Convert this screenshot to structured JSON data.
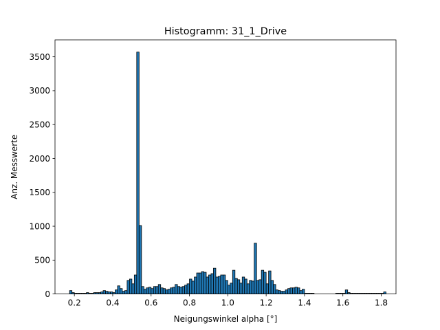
{
  "chart_data": {
    "type": "bar",
    "title": "Histogramm: 31_1_Drive",
    "xlabel": "Neigungswinkel alpha [°]",
    "ylabel": "Anz. Messwerte",
    "xlim": [
      0.099,
      1.877
    ],
    "ylim": [
      0,
      3750
    ],
    "xticks": [
      0.2,
      0.4,
      0.6,
      0.8,
      1.0,
      1.2,
      1.4,
      1.6,
      1.8
    ],
    "xtick_labels": [
      "0.2",
      "0.4",
      "0.6",
      "0.8",
      "1.0",
      "1.2",
      "1.4",
      "1.6",
      "1.8"
    ],
    "yticks": [
      0,
      500,
      1000,
      1500,
      2000,
      2500,
      3000,
      3500
    ],
    "ytick_labels": [
      "0",
      "500",
      "1000",
      "1500",
      "2000",
      "2500",
      "3000",
      "3500"
    ],
    "grid": false,
    "bar_color": "#1f77b4",
    "edge_color": "#000000",
    "bins": {
      "start": 0.175,
      "width": 0.0125,
      "counts": [
        50,
        20,
        10,
        10,
        10,
        10,
        10,
        20,
        10,
        10,
        20,
        20,
        20,
        30,
        50,
        40,
        30,
        30,
        20,
        60,
        120,
        80,
        40,
        50,
        200,
        220,
        150,
        280,
        3570,
        1010,
        110,
        70,
        90,
        100,
        80,
        110,
        110,
        140,
        90,
        80,
        60,
        70,
        90,
        100,
        140,
        110,
        100,
        110,
        130,
        150,
        220,
        190,
        250,
        310,
        310,
        330,
        320,
        250,
        280,
        300,
        380,
        250,
        260,
        280,
        280,
        200,
        130,
        160,
        350,
        230,
        210,
        160,
        250,
        220,
        150,
        200,
        190,
        750,
        200,
        210,
        350,
        320,
        150,
        340,
        200,
        140,
        60,
        50,
        40,
        40,
        60,
        80,
        90,
        90,
        100,
        90,
        50,
        70,
        10,
        10,
        10,
        10,
        0,
        0,
        0,
        0,
        0,
        0,
        0,
        0,
        0,
        10,
        10,
        10,
        10,
        60,
        20,
        10,
        10,
        10,
        10,
        10,
        10,
        10,
        10,
        10,
        10,
        10,
        10,
        10,
        10,
        30
      ]
    }
  }
}
